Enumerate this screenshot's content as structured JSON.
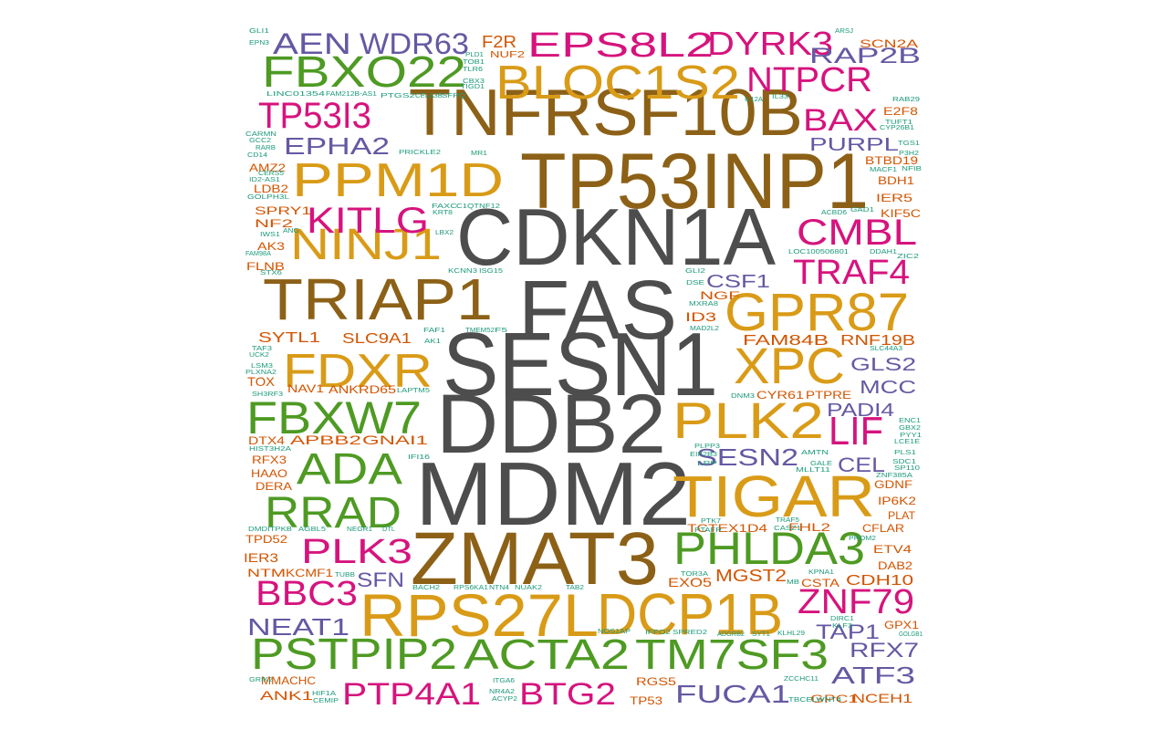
{
  "colors": {
    "gray": "#4d4d4d",
    "brown": "#8c6117",
    "gold": "#d99b17",
    "green": "#4e9a23",
    "magenta": "#d6137d",
    "purple": "#6558a3",
    "orange": "#d35400",
    "teal": "#1d9a7a"
  },
  "words": [
    {
      "text": "CDKN1A",
      "color": "gray"
    },
    {
      "text": "FAS",
      "color": "gray"
    },
    {
      "text": "SESN1",
      "color": "gray"
    },
    {
      "text": "DDB2",
      "color": "gray"
    },
    {
      "text": "MDM2",
      "color": "gray"
    },
    {
      "text": "ZMAT3",
      "color": "brown"
    },
    {
      "text": "TNFRSF10B",
      "color": "brown"
    },
    {
      "text": "TP53INP1",
      "color": "brown"
    },
    {
      "text": "TRIAP1",
      "color": "brown"
    },
    {
      "text": "BLOC1S2",
      "color": "gold"
    },
    {
      "text": "PPM1D",
      "color": "gold"
    },
    {
      "text": "NINJ1",
      "color": "gold"
    },
    {
      "text": "FDXR",
      "color": "gold"
    },
    {
      "text": "GPR87",
      "color": "gold"
    },
    {
      "text": "XPC",
      "color": "gold"
    },
    {
      "text": "PLK2",
      "color": "gold"
    },
    {
      "text": "TIGAR",
      "color": "gold"
    },
    {
      "text": "RPS27L",
      "color": "gold"
    },
    {
      "text": "DCP1B",
      "color": "gold"
    },
    {
      "text": "FBXO22",
      "color": "green"
    },
    {
      "text": "FBXW7",
      "color": "green"
    },
    {
      "text": "ADA",
      "color": "green"
    },
    {
      "text": "RRAD",
      "color": "green"
    },
    {
      "text": "PHLDA3",
      "color": "green"
    },
    {
      "text": "PSTPIP2",
      "color": "green"
    },
    {
      "text": "ACTA2",
      "color": "green"
    },
    {
      "text": "TM7SF3",
      "color": "green"
    },
    {
      "text": "EPS8L2",
      "color": "magenta"
    },
    {
      "text": "DYRK3",
      "color": "magenta"
    },
    {
      "text": "NTPCR",
      "color": "magenta"
    },
    {
      "text": "TP53I3",
      "color": "magenta"
    },
    {
      "text": "BAX",
      "color": "magenta"
    },
    {
      "text": "KITLG",
      "color": "magenta"
    },
    {
      "text": "CMBL",
      "color": "magenta"
    },
    {
      "text": "TRAF4",
      "color": "magenta"
    },
    {
      "text": "LIF",
      "color": "magenta"
    },
    {
      "text": "PLK3",
      "color": "magenta"
    },
    {
      "text": "BBC3",
      "color": "magenta"
    },
    {
      "text": "ZNF79",
      "color": "magenta"
    },
    {
      "text": "PTP4A1",
      "color": "magenta"
    },
    {
      "text": "BTG2",
      "color": "magenta"
    },
    {
      "text": "AEN",
      "color": "purple"
    },
    {
      "text": "WDR63",
      "color": "purple"
    },
    {
      "text": "RAP2B",
      "color": "purple"
    },
    {
      "text": "EPHA2",
      "color": "purple"
    },
    {
      "text": "PURPL",
      "color": "purple"
    },
    {
      "text": "CSF1",
      "color": "purple"
    },
    {
      "text": "GLS2",
      "color": "purple"
    },
    {
      "text": "MCC",
      "color": "purple"
    },
    {
      "text": "PADI4",
      "color": "purple"
    },
    {
      "text": "SESN2",
      "color": "purple"
    },
    {
      "text": "CEL",
      "color": "purple"
    },
    {
      "text": "SFN",
      "color": "purple"
    },
    {
      "text": "NEAT1",
      "color": "purple"
    },
    {
      "text": "TAP1",
      "color": "purple"
    },
    {
      "text": "RFX7",
      "color": "purple"
    },
    {
      "text": "ATF3",
      "color": "purple"
    },
    {
      "text": "FUCA1",
      "color": "purple"
    },
    {
      "text": "F2R",
      "color": "orange"
    },
    {
      "text": "NUF2",
      "color": "orange"
    },
    {
      "text": "SCN2A",
      "color": "orange"
    },
    {
      "text": "E2F8",
      "color": "orange"
    },
    {
      "text": "AMZ2",
      "color": "orange"
    },
    {
      "text": "LDB2",
      "color": "orange"
    },
    {
      "text": "SPRY1",
      "color": "orange"
    },
    {
      "text": "NF2",
      "color": "orange"
    },
    {
      "text": "AK3",
      "color": "orange"
    },
    {
      "text": "FLNB",
      "color": "orange"
    },
    {
      "text": "BTBD19",
      "color": "orange"
    },
    {
      "text": "BDH1",
      "color": "orange"
    },
    {
      "text": "IER5",
      "color": "orange"
    },
    {
      "text": "KIF5C",
      "color": "orange"
    },
    {
      "text": "NGF",
      "color": "orange"
    },
    {
      "text": "ID3",
      "color": "orange"
    },
    {
      "text": "SYTL1",
      "color": "orange"
    },
    {
      "text": "SLC9A1",
      "color": "orange"
    },
    {
      "text": "FAM84B",
      "color": "orange"
    },
    {
      "text": "RNF19B",
      "color": "orange"
    },
    {
      "text": "TOX",
      "color": "orange"
    },
    {
      "text": "NAV1",
      "color": "orange"
    },
    {
      "text": "ANKRD65",
      "color": "orange"
    },
    {
      "text": "CYR61",
      "color": "orange"
    },
    {
      "text": "PTPRE",
      "color": "orange"
    },
    {
      "text": "DTX4",
      "color": "orange"
    },
    {
      "text": "APBB2",
      "color": "orange"
    },
    {
      "text": "GNAI1",
      "color": "orange"
    },
    {
      "text": "RFX3",
      "color": "orange"
    },
    {
      "text": "HAAO",
      "color": "orange"
    },
    {
      "text": "DERA",
      "color": "orange"
    },
    {
      "text": "GDNF",
      "color": "orange"
    },
    {
      "text": "IP6K2",
      "color": "orange"
    },
    {
      "text": "PLAT",
      "color": "orange"
    },
    {
      "text": "TPD52",
      "color": "orange"
    },
    {
      "text": "FHL2",
      "color": "orange"
    },
    {
      "text": "CFLAR",
      "color": "orange"
    },
    {
      "text": "IER3",
      "color": "orange"
    },
    {
      "text": "NTM",
      "color": "orange"
    },
    {
      "text": "KCMF1",
      "color": "orange"
    },
    {
      "text": "TCTEX1D4",
      "color": "orange"
    },
    {
      "text": "ETV4",
      "color": "orange"
    },
    {
      "text": "DAB2",
      "color": "orange"
    },
    {
      "text": "EXO5",
      "color": "orange"
    },
    {
      "text": "MGST2",
      "color": "orange"
    },
    {
      "text": "CSTA",
      "color": "orange"
    },
    {
      "text": "CDH10",
      "color": "orange"
    },
    {
      "text": "GPX1",
      "color": "orange"
    },
    {
      "text": "MMACHC",
      "color": "orange"
    },
    {
      "text": "ANK1",
      "color": "orange"
    },
    {
      "text": "RGS5",
      "color": "orange"
    },
    {
      "text": "TP53",
      "color": "orange"
    },
    {
      "text": "GPC1",
      "color": "orange"
    },
    {
      "text": "NCEH1",
      "color": "orange"
    },
    {
      "text": "GLI1",
      "color": "teal"
    },
    {
      "text": "EPN3",
      "color": "teal"
    },
    {
      "text": "PLD1",
      "color": "teal"
    },
    {
      "text": "TOB1",
      "color": "teal"
    },
    {
      "text": "TLR6",
      "color": "teal"
    },
    {
      "text": "CBX3",
      "color": "teal"
    },
    {
      "text": "TIGD1",
      "color": "teal"
    },
    {
      "text": "SFPQ",
      "color": "teal"
    },
    {
      "text": "CELA3B",
      "color": "teal"
    },
    {
      "text": "PTGS2",
      "color": "teal"
    },
    {
      "text": "FAM212B-AS1",
      "color": "teal"
    },
    {
      "text": "LINC01354",
      "color": "teal"
    },
    {
      "text": "ARSJ",
      "color": "teal"
    },
    {
      "text": "IL12A",
      "color": "teal"
    },
    {
      "text": "IL33",
      "color": "teal"
    },
    {
      "text": "RAB29",
      "color": "teal"
    },
    {
      "text": "TUFT1",
      "color": "teal"
    },
    {
      "text": "CYP26B1",
      "color": "teal"
    },
    {
      "text": "TGS1",
      "color": "teal"
    },
    {
      "text": "P3H2",
      "color": "teal"
    },
    {
      "text": "MACF1",
      "color": "teal"
    },
    {
      "text": "NFIB",
      "color": "teal"
    },
    {
      "text": "CARMN",
      "color": "teal"
    },
    {
      "text": "GCC2",
      "color": "teal"
    },
    {
      "text": "RARB",
      "color": "teal"
    },
    {
      "text": "CD14",
      "color": "teal"
    },
    {
      "text": "CERS5",
      "color": "teal"
    },
    {
      "text": "ID2-AS1",
      "color": "teal"
    },
    {
      "text": "GOLPH3L",
      "color": "teal"
    },
    {
      "text": "PRICKLE2",
      "color": "teal"
    },
    {
      "text": "MR1",
      "color": "teal"
    },
    {
      "text": "FAXC",
      "color": "teal"
    },
    {
      "text": "C1QTNF12",
      "color": "teal"
    },
    {
      "text": "KRT8",
      "color": "teal"
    },
    {
      "text": "ACBD6",
      "color": "teal"
    },
    {
      "text": "GAD1",
      "color": "teal"
    },
    {
      "text": "IWS1",
      "color": "teal"
    },
    {
      "text": "ANG",
      "color": "teal"
    },
    {
      "text": "LBX2",
      "color": "teal"
    },
    {
      "text": "FAM98A",
      "color": "teal"
    },
    {
      "text": "STX6",
      "color": "teal"
    },
    {
      "text": "KCNN3",
      "color": "teal"
    },
    {
      "text": "ISG15",
      "color": "teal"
    },
    {
      "text": "LOC100506801",
      "color": "teal"
    },
    {
      "text": "DDAH1",
      "color": "teal"
    },
    {
      "text": "ZIC2",
      "color": "teal"
    },
    {
      "text": "GLI2",
      "color": "teal"
    },
    {
      "text": "DSE",
      "color": "teal"
    },
    {
      "text": "MXRA8",
      "color": "teal"
    },
    {
      "text": "MAD2L2",
      "color": "teal"
    },
    {
      "text": "FAF1",
      "color": "teal"
    },
    {
      "text": "TMEM52",
      "color": "teal"
    },
    {
      "text": "F5",
      "color": "teal"
    },
    {
      "text": "AK1",
      "color": "teal"
    },
    {
      "text": "TAF3",
      "color": "teal"
    },
    {
      "text": "UCK2",
      "color": "teal"
    },
    {
      "text": "LSM3",
      "color": "teal"
    },
    {
      "text": "PLXNA2",
      "color": "teal"
    },
    {
      "text": "SH3RF3",
      "color": "teal"
    },
    {
      "text": "LAPTM5",
      "color": "teal"
    },
    {
      "text": "SLC44A3",
      "color": "teal"
    },
    {
      "text": "DNM3",
      "color": "teal"
    },
    {
      "text": "HIST3H2A",
      "color": "teal"
    },
    {
      "text": "IFI16",
      "color": "teal"
    },
    {
      "text": "ENC1",
      "color": "teal"
    },
    {
      "text": "GBX2",
      "color": "teal"
    },
    {
      "text": "PYY1",
      "color": "teal"
    },
    {
      "text": "LCE1E",
      "color": "teal"
    },
    {
      "text": "PLS1",
      "color": "teal"
    },
    {
      "text": "SDC1",
      "color": "teal"
    },
    {
      "text": "SP110",
      "color": "teal"
    },
    {
      "text": "ZNF385A",
      "color": "teal"
    },
    {
      "text": "PLPP3",
      "color": "teal"
    },
    {
      "text": "EIF2B3",
      "color": "teal"
    },
    {
      "text": "LPP",
      "color": "teal"
    },
    {
      "text": "AMTN",
      "color": "teal"
    },
    {
      "text": "GALE",
      "color": "teal"
    },
    {
      "text": "MLLT11",
      "color": "teal"
    },
    {
      "text": "DMDITPKB",
      "color": "teal"
    },
    {
      "text": "AGBL5",
      "color": "teal"
    },
    {
      "text": "NEGR1",
      "color": "teal"
    },
    {
      "text": "DTL",
      "color": "teal"
    },
    {
      "text": "PTK7",
      "color": "teal"
    },
    {
      "text": "PTAFR",
      "color": "teal"
    },
    {
      "text": "TRAF5",
      "color": "teal"
    },
    {
      "text": "CASZ1",
      "color": "teal"
    },
    {
      "text": "PROM2",
      "color": "teal"
    },
    {
      "text": "TUBB",
      "color": "teal"
    },
    {
      "text": "TOR3A",
      "color": "teal"
    },
    {
      "text": "BACH2",
      "color": "teal"
    },
    {
      "text": "RPS6KA1",
      "color": "teal"
    },
    {
      "text": "NTN4",
      "color": "teal"
    },
    {
      "text": "NUAK2",
      "color": "teal"
    },
    {
      "text": "TAB2",
      "color": "teal"
    },
    {
      "text": "MB",
      "color": "teal"
    },
    {
      "text": "KPNA1",
      "color": "teal"
    },
    {
      "text": "NOS1AP",
      "color": "teal"
    },
    {
      "text": "IFFO2",
      "color": "teal"
    },
    {
      "text": "SPRED2",
      "color": "teal"
    },
    {
      "text": "ADGRB2",
      "color": "teal"
    },
    {
      "text": "SYT1",
      "color": "teal"
    },
    {
      "text": "KLHL29",
      "color": "teal"
    },
    {
      "text": "DIRC1",
      "color": "teal"
    },
    {
      "text": "KLF3",
      "color": "teal"
    },
    {
      "text": "GOLGB1",
      "color": "teal"
    },
    {
      "text": "GRIK2",
      "color": "teal"
    },
    {
      "text": "HIF1A",
      "color": "teal"
    },
    {
      "text": "CEMIP",
      "color": "teal"
    },
    {
      "text": "ITGA6",
      "color": "teal"
    },
    {
      "text": "NR4A2",
      "color": "teal"
    },
    {
      "text": "ACYP2",
      "color": "teal"
    },
    {
      "text": "ZCCHC11",
      "color": "teal"
    },
    {
      "text": "TBCELWNT4",
      "color": "teal"
    }
  ]
}
